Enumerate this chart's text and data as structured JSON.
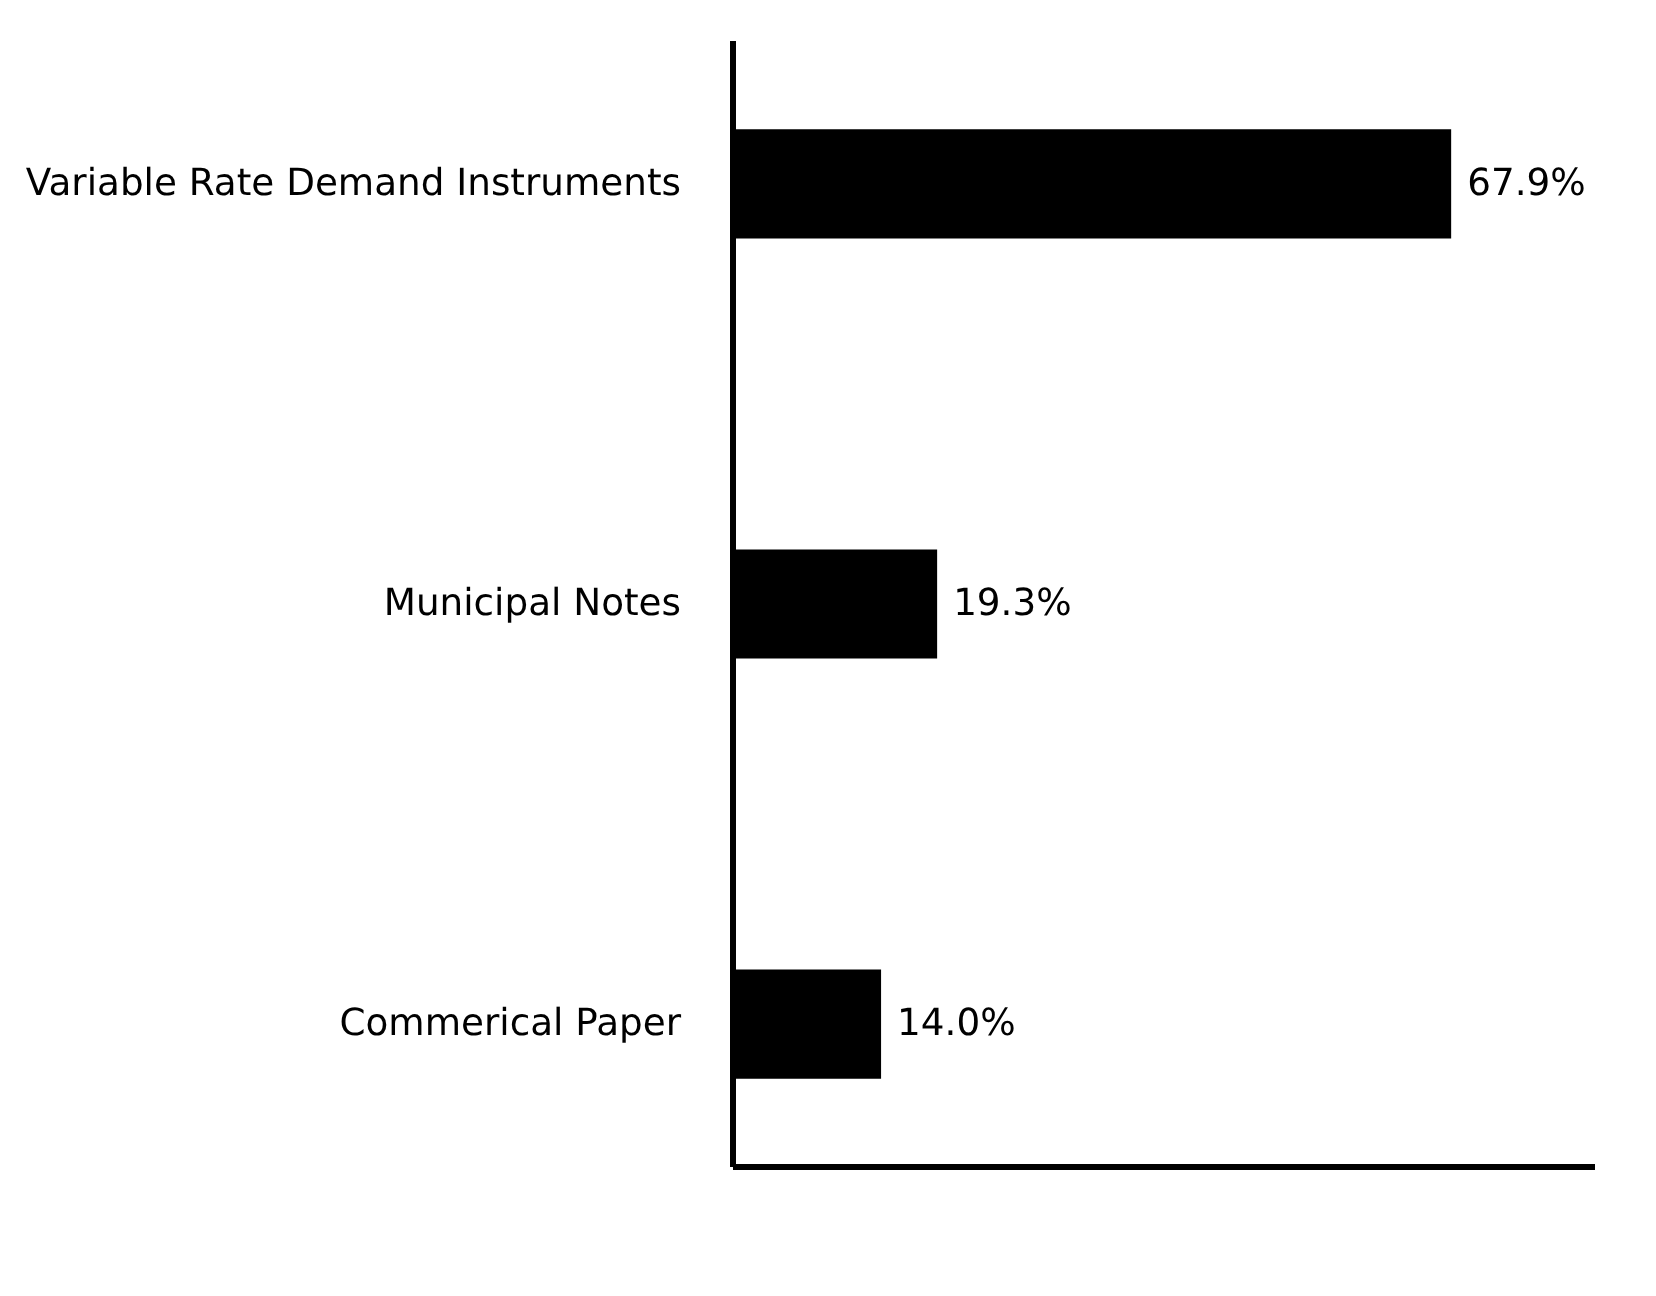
{
  "chart_data": {
    "type": "bar",
    "orientation": "horizontal",
    "categories": [
      "Variable Rate Demand Instruments",
      "Municipal Notes",
      "Commerical Paper"
    ],
    "values": [
      67.9,
      19.3,
      14.0
    ],
    "value_labels": [
      "67.9%",
      "19.3%",
      "14.0%"
    ],
    "color": "#000000",
    "xlim": [
      0,
      81.5
    ],
    "tick_labels": "y"
  }
}
